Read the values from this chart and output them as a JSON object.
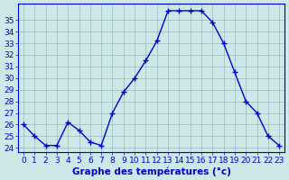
{
  "hours": [
    0,
    1,
    2,
    3,
    4,
    5,
    6,
    7,
    8,
    9,
    10,
    11,
    12,
    13,
    14,
    15,
    16,
    17,
    18,
    19,
    20,
    21,
    22,
    23
  ],
  "temperatures": [
    26.0,
    25.0,
    24.2,
    24.2,
    26.2,
    25.5,
    24.5,
    24.2,
    27.0,
    28.8,
    30.0,
    31.5,
    33.2,
    35.8,
    35.8,
    35.8,
    35.8,
    34.8,
    33.0,
    30.5,
    28.0,
    27.0,
    25.0,
    24.2
  ],
  "line_color": "#0000cc",
  "marker": "+",
  "marker_size": 4,
  "marker_linewidth": 1.0,
  "line_width": 1.0,
  "bg_color": "#cce8e8",
  "grid_color": "#99bbbb",
  "xlabel": "Graphe des températures (°c)",
  "xlabel_fontsize": 7.5,
  "ylabel_ticks": [
    24,
    25,
    26,
    27,
    28,
    29,
    30,
    31,
    32,
    33,
    34,
    35
  ],
  "ylim": [
    23.6,
    36.4
  ],
  "xlim": [
    -0.5,
    23.5
  ],
  "tick_fontsize": 6.5,
  "spine_color": "#0000cc"
}
